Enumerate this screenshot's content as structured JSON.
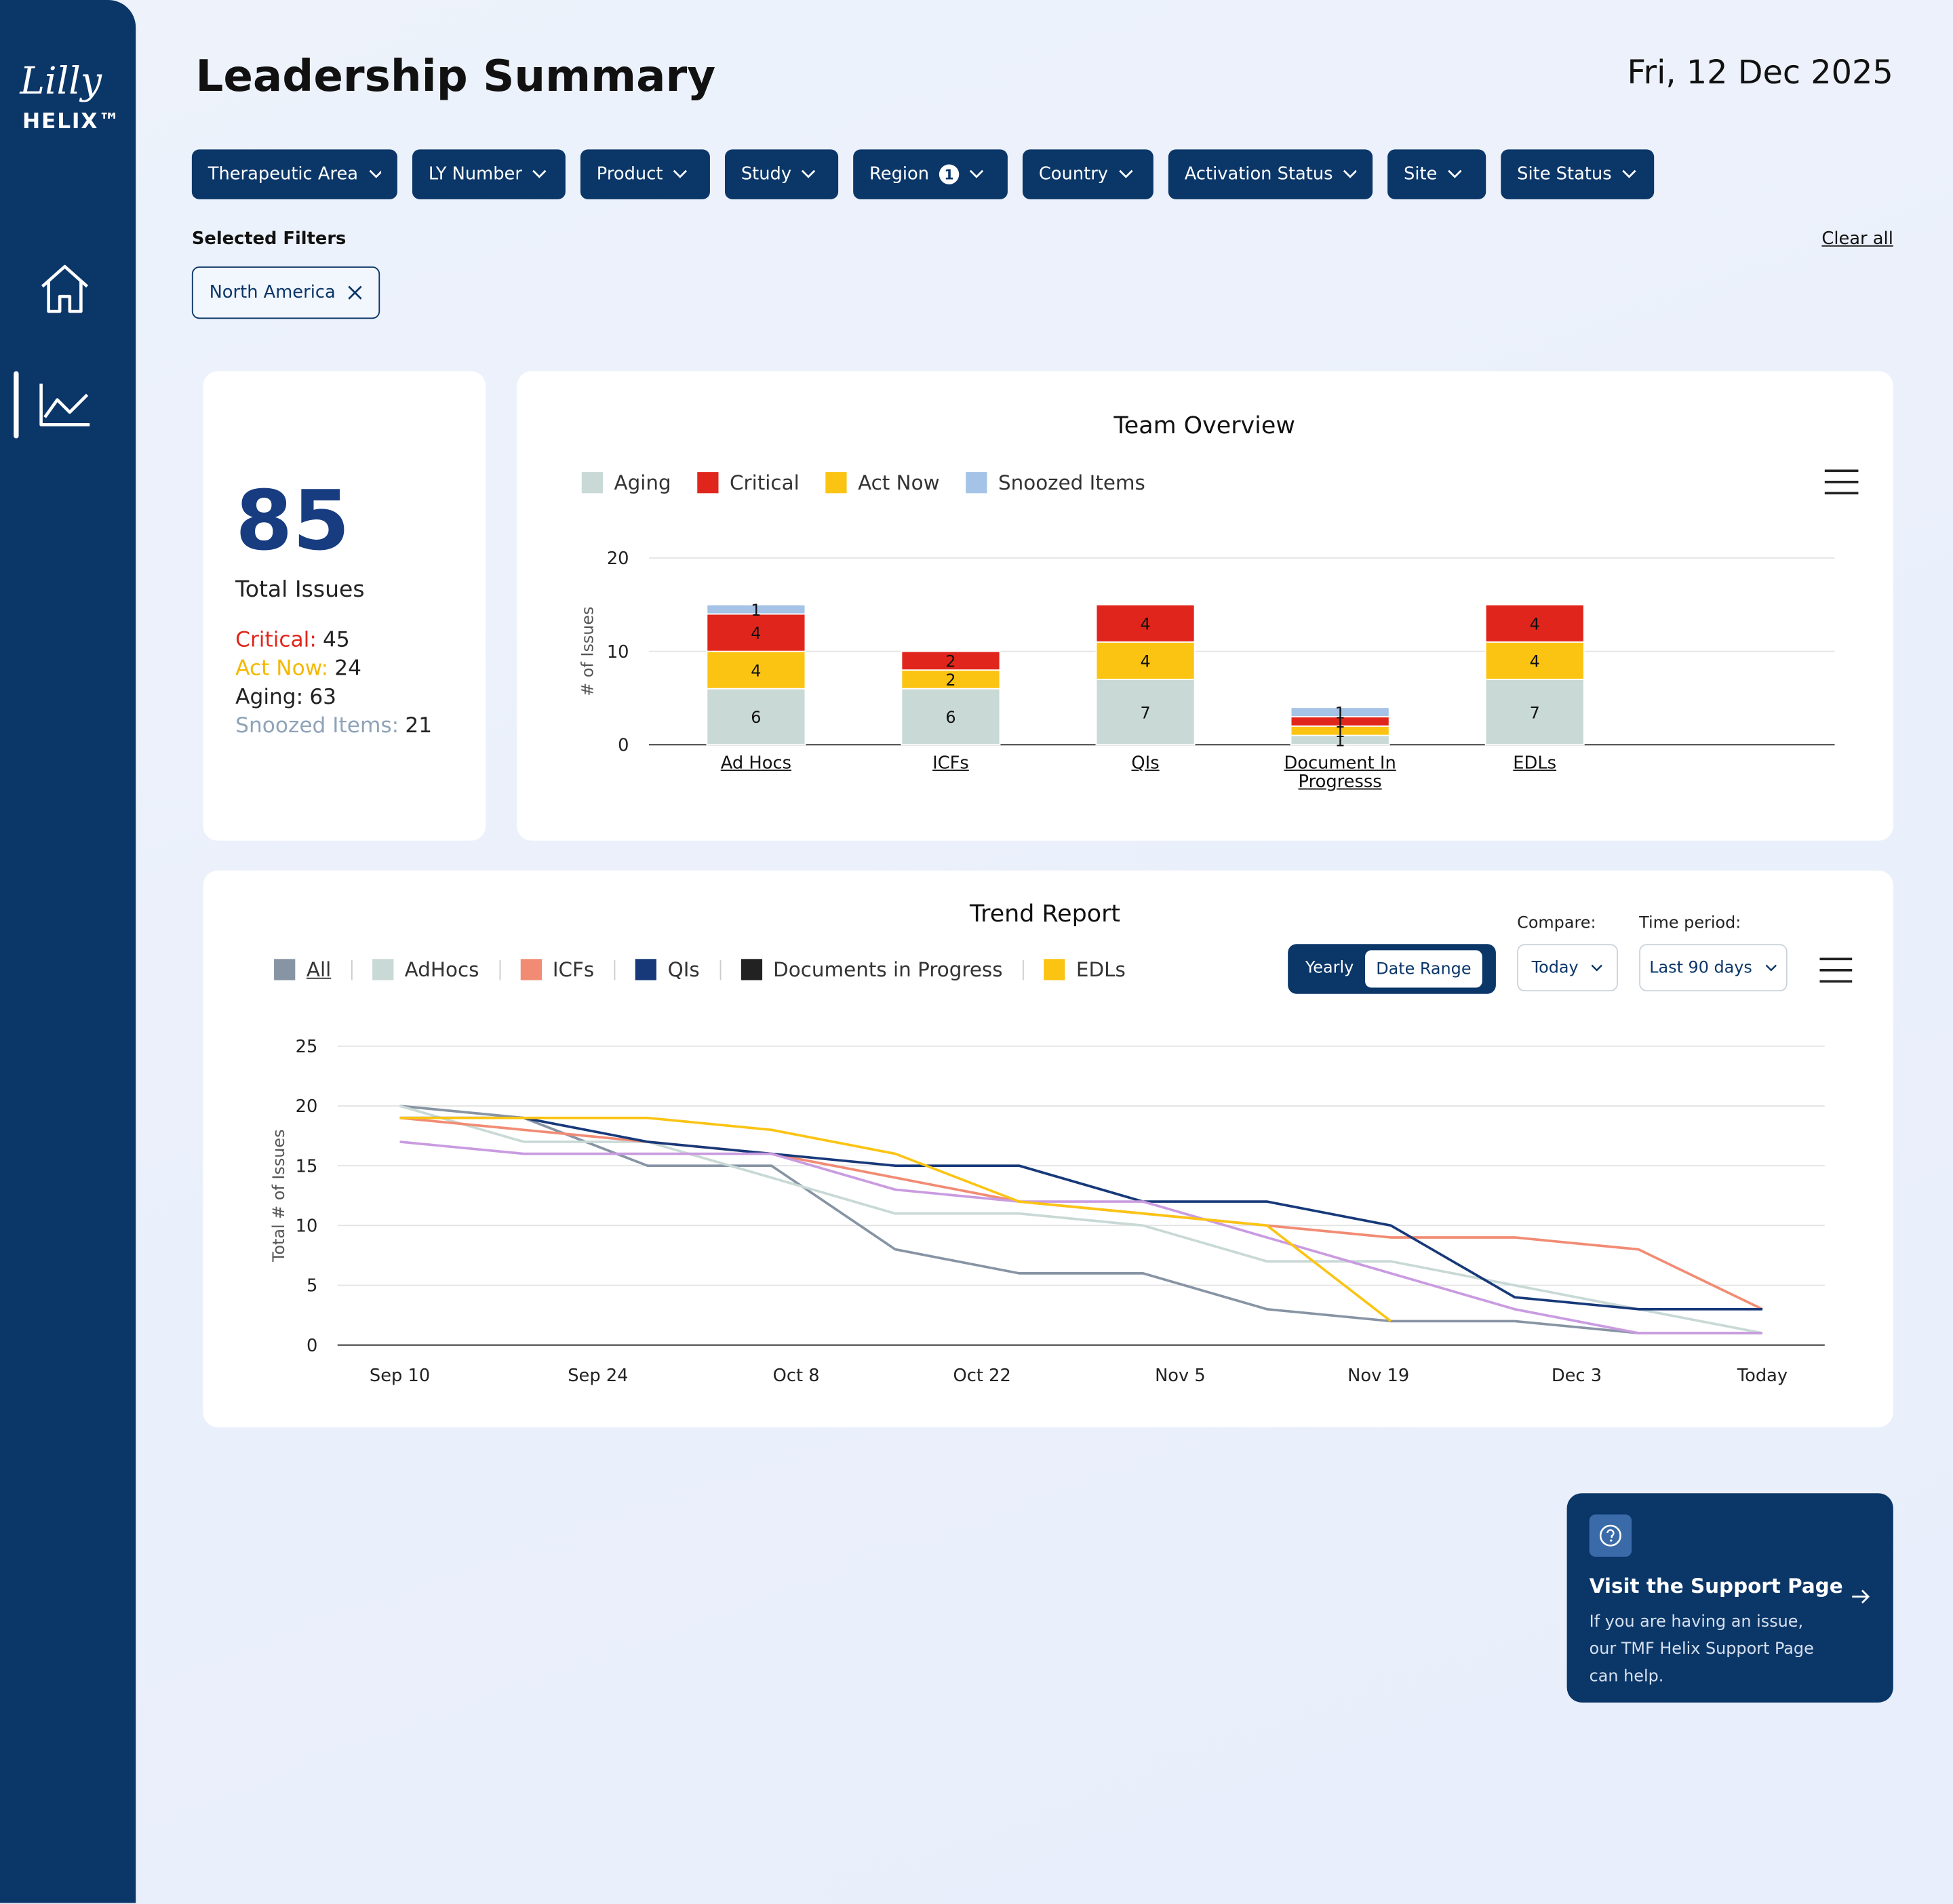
{
  "sidebar": {
    "logo_script": "Lilly",
    "logo_text": "HELIX™"
  },
  "header": {
    "title": "Leadership Summary",
    "date": "Fri, 12 Dec 2025"
  },
  "filters": [
    {
      "label": "Therapeutic Area"
    },
    {
      "label": "LY Number"
    },
    {
      "label": "Product"
    },
    {
      "label": "Study"
    },
    {
      "label": "Region",
      "badge": 1
    },
    {
      "label": "Country"
    },
    {
      "label": "Activation Status"
    },
    {
      "label": "Site"
    },
    {
      "label": "Site Status"
    }
  ],
  "selected_filters": {
    "title": "Selected Filters",
    "clear": "Clear all",
    "chips": [
      "North America"
    ]
  },
  "summary": {
    "total": 85,
    "total_label": "Total Issues",
    "items": [
      {
        "label": "Critical:",
        "value": 45,
        "color": "#e0261c"
      },
      {
        "label": "Act Now:",
        "value": 24,
        "color": "#f5b800"
      },
      {
        "label": "Aging:",
        "value": 63,
        "color": "#222222"
      },
      {
        "label": "Snoozed Items:",
        "value": 21,
        "color": "#8fa3b8"
      }
    ]
  },
  "chart_data": [
    {
      "type": "stacked_bar",
      "title": "Team Overview",
      "categories": [
        "Ad Hocs",
        "ICFs",
        "QIs",
        "Document In Progresss",
        "EDLs"
      ],
      "series": [
        {
          "name": "Aging",
          "color": "#c8d9d6",
          "values": [
            6,
            6,
            7,
            1,
            7
          ]
        },
        {
          "name": "Critical",
          "color": "#e0261c",
          "values": [
            4,
            2,
            4,
            1,
            4
          ]
        },
        {
          "name": "Act Now",
          "color": "#fbc413",
          "values": [
            4,
            2,
            4,
            1,
            4
          ]
        },
        {
          "name": "Snoozed Items",
          "color": "#a4c3e6",
          "values": [
            1,
            null,
            null,
            1,
            null
          ]
        }
      ],
      "ylabel": "# of Issues",
      "ylim": [
        0,
        20
      ],
      "yticks": [
        0,
        10,
        20
      ],
      "grid": true
    },
    {
      "type": "line",
      "title": "Trend Report",
      "x": [
        0,
        1,
        2,
        3,
        4,
        5,
        6,
        7,
        8,
        9,
        10,
        11
      ],
      "xlim": [
        0,
        11
      ],
      "xticks": [
        {
          "value": 0,
          "label": "Sep 10"
        },
        {
          "value": 1.6,
          "label": "Sep 24"
        },
        {
          "value": 3.2,
          "label": "Oct 8"
        },
        {
          "value": 4.7,
          "label": "Oct 22"
        },
        {
          "value": 6.3,
          "label": "Nov 5"
        },
        {
          "value": 7.9,
          "label": "Nov 19"
        },
        {
          "value": 9.5,
          "label": "Dec 3"
        },
        {
          "value": 11,
          "label": "Today"
        }
      ],
      "series": [
        {
          "name": "All",
          "color": "#8794a4",
          "values": [
            20,
            19,
            15,
            15,
            8,
            6,
            6,
            3,
            2,
            2,
            1,
            1
          ]
        },
        {
          "name": "AdHocs",
          "color": "#c8d9d6",
          "values": [
            20,
            17,
            17,
            14,
            11,
            11,
            10,
            7,
            7,
            5,
            3,
            1
          ]
        },
        {
          "name": "ICFs",
          "color": "#f28b74",
          "values": [
            19,
            18,
            17,
            16,
            14,
            12,
            11,
            10,
            9,
            9,
            8,
            3
          ]
        },
        {
          "name": "QIs",
          "color": "#17397a",
          "values": [
            19,
            19,
            17,
            16,
            15,
            15,
            12,
            12,
            10,
            4,
            3,
            3
          ]
        },
        {
          "name": "Documents in Progress",
          "color": "#222222",
          "line_color": "#c99be0",
          "values": [
            17,
            16,
            16,
            16,
            13,
            12,
            12,
            9,
            6,
            3,
            1,
            1
          ]
        },
        {
          "name": "EDLs",
          "color": "#fbc413",
          "values": [
            19,
            19,
            19,
            18,
            16,
            12,
            11,
            10,
            2,
            null,
            null,
            null
          ]
        }
      ],
      "ylabel": "Total # of Issues",
      "ylim": [
        0,
        25
      ],
      "yticks": [
        0,
        5,
        10,
        15,
        20,
        25
      ],
      "grid": true
    }
  ],
  "trend_controls": {
    "toggle": [
      "Yearly",
      "Date Range"
    ],
    "compare_label": "Compare:",
    "compare_value": "Today",
    "period_label": "Time period:",
    "period_value": "Last 90 days"
  },
  "support": {
    "title": "Visit the Support Page",
    "text": "If you are having an issue, our TMF Helix Support Page can help."
  }
}
